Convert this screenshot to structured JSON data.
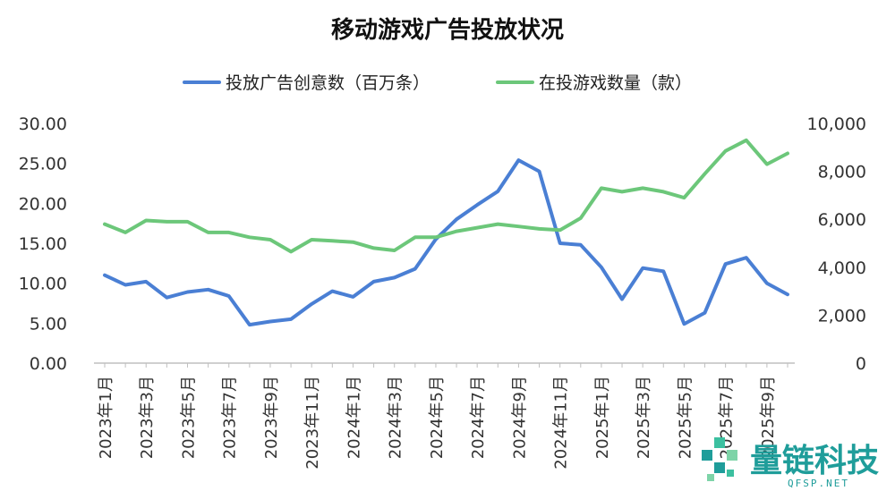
{
  "chart_data": {
    "type": "line",
    "title": "移动游戏广告投放状况",
    "categories": [
      "2023年1月",
      "2023年2月",
      "2023年3月",
      "2023年4月",
      "2023年5月",
      "2023年6月",
      "2023年7月",
      "2023年8月",
      "2023年9月",
      "2023年10月",
      "2023年11月",
      "2023年12月",
      "2024年1月",
      "2024年2月",
      "2024年3月",
      "2024年4月",
      "2024年5月",
      "2024年6月",
      "2024年7月",
      "2024年8月",
      "2024年9月",
      "2024年10月",
      "2024年11月",
      "2024年12月",
      "2025年1月",
      "2025年2月",
      "2025年3月",
      "2025年4月",
      "2025年5月",
      "2025年6月",
      "2025年7月",
      "2025年8月",
      "2025年9月",
      "2025年10月"
    ],
    "tick_labels": [
      "2023年1月",
      "2023年3月",
      "2023年5月",
      "2023年7月",
      "2023年9月",
      "2023年11月",
      "2024年1月",
      "2024年3月",
      "2024年5月",
      "2024年7月",
      "2024年9月",
      "2024年11月",
      "2025年1月",
      "2025年3月",
      "2025年5月",
      "2025年7月",
      "2025年9月"
    ],
    "series": [
      {
        "name": "投放广告创意数（百万条）",
        "axis": "left",
        "color": "#4a7fd4",
        "values": [
          11.0,
          9.8,
          10.2,
          8.2,
          8.9,
          9.2,
          8.4,
          4.8,
          5.2,
          5.5,
          7.4,
          9.0,
          8.3,
          10.2,
          10.7,
          11.8,
          15.5,
          18.0,
          19.8,
          21.5,
          25.4,
          24.0,
          15.0,
          14.8,
          12.0,
          8.0,
          11.9,
          11.5,
          4.9,
          6.3,
          12.4,
          13.2,
          10.0,
          8.6
        ]
      },
      {
        "name": "在投游戏数量（款）",
        "axis": "right",
        "color": "#6cc77a",
        "values": [
          5800,
          5450,
          5950,
          5900,
          5900,
          5450,
          5450,
          5250,
          5150,
          4650,
          5150,
          5100,
          5050,
          4800,
          4700,
          5250,
          5250,
          5500,
          5650,
          5800,
          5700,
          5600,
          5550,
          6050,
          7300,
          7150,
          7300,
          7150,
          6900,
          7900,
          8850,
          9300,
          8300,
          8750
        ]
      }
    ],
    "y_left": {
      "min": 0,
      "max": 30,
      "ticks": [
        "0.00",
        "5.00",
        "10.00",
        "15.00",
        "20.00",
        "25.00",
        "30.00"
      ]
    },
    "y_right": {
      "min": 0,
      "max": 10000,
      "ticks": [
        "0",
        "2,000",
        "4,000",
        "6,000",
        "8,000",
        "10,000"
      ]
    },
    "grid": false,
    "legend_position": "top"
  },
  "watermark": {
    "brand": "量链科技",
    "site": "QFSP.NET"
  }
}
